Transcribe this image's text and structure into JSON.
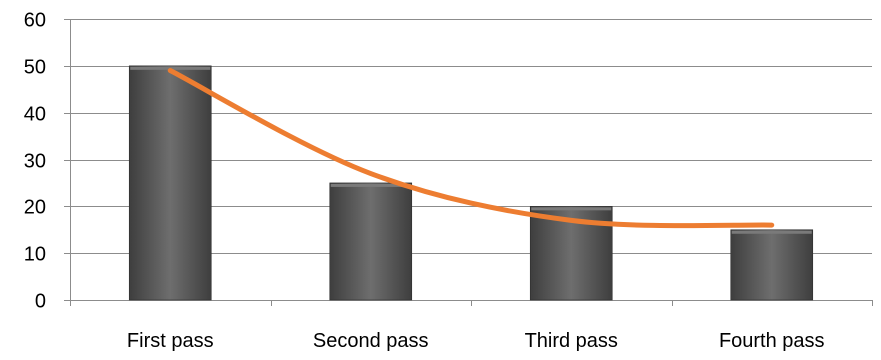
{
  "chart_data": {
    "type": "bar",
    "categories": [
      "First pass",
      "Second pass",
      "Third pass",
      "Fourth pass"
    ],
    "values": [
      50,
      25,
      20,
      15
    ],
    "ylim": [
      0,
      60
    ],
    "yticks": [
      0,
      10,
      20,
      30,
      40,
      50,
      60
    ],
    "grid": true,
    "trendline": {
      "type": "polynomial",
      "values": [
        49,
        27,
        17,
        16
      ],
      "color": "#ED7D31"
    },
    "bar_color": "#595959",
    "title": "",
    "xlabel": "",
    "ylabel": ""
  }
}
